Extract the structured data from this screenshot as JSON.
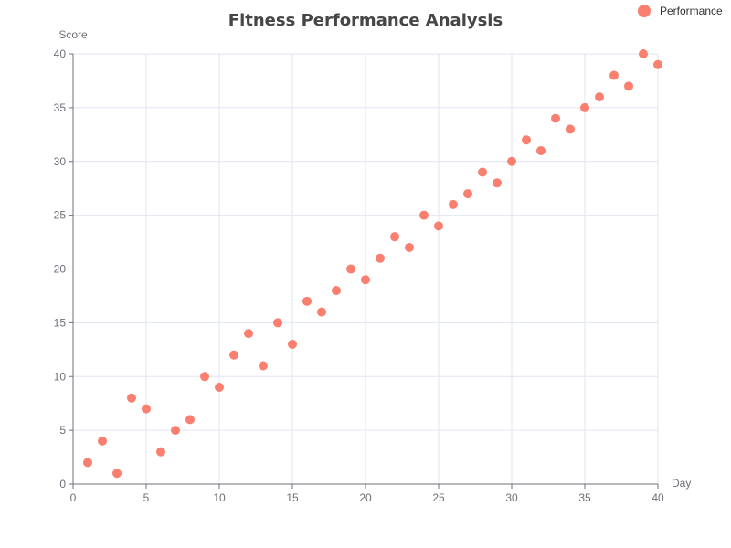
{
  "chart_data": {
    "type": "scatter",
    "title": "Fitness Performance Analysis",
    "xlabel": "Day",
    "ylabel": "Score",
    "xlim": [
      0,
      40
    ],
    "ylim": [
      0,
      40
    ],
    "x_ticks": [
      0,
      5,
      10,
      15,
      20,
      25,
      30,
      35,
      40
    ],
    "y_ticks": [
      0,
      5,
      10,
      15,
      20,
      25,
      30,
      35,
      40
    ],
    "grid": true,
    "legend_position": "top-right",
    "series": [
      {
        "name": "Performance",
        "color": "#fa7f6f",
        "points": [
          [
            1,
            2
          ],
          [
            2,
            4
          ],
          [
            3,
            1
          ],
          [
            4,
            8
          ],
          [
            5,
            7
          ],
          [
            6,
            3
          ],
          [
            7,
            5
          ],
          [
            8,
            6
          ],
          [
            9,
            10
          ],
          [
            10,
            9
          ],
          [
            11,
            12
          ],
          [
            12,
            14
          ],
          [
            13,
            11
          ],
          [
            14,
            15
          ],
          [
            15,
            13
          ],
          [
            16,
            17
          ],
          [
            17,
            16
          ],
          [
            18,
            18
          ],
          [
            19,
            20
          ],
          [
            20,
            19
          ],
          [
            21,
            21
          ],
          [
            22,
            23
          ],
          [
            23,
            22
          ],
          [
            24,
            25
          ],
          [
            25,
            24
          ],
          [
            26,
            26
          ],
          [
            27,
            27
          ],
          [
            28,
            29
          ],
          [
            29,
            28
          ],
          [
            30,
            30
          ],
          [
            31,
            32
          ],
          [
            32,
            31
          ],
          [
            33,
            34
          ],
          [
            34,
            33
          ],
          [
            35,
            35
          ],
          [
            36,
            36
          ],
          [
            37,
            38
          ],
          [
            38,
            37
          ],
          [
            39,
            40
          ],
          [
            40,
            39
          ]
        ]
      }
    ]
  }
}
